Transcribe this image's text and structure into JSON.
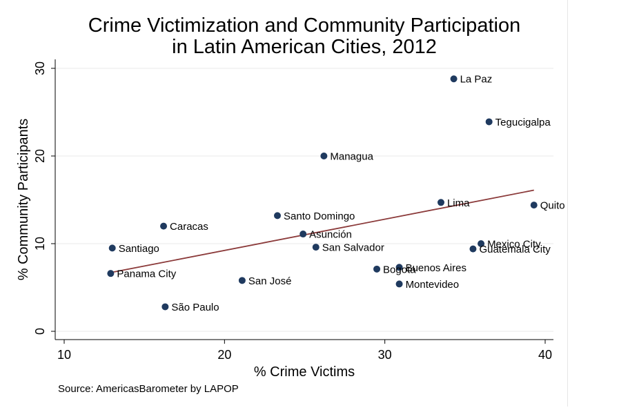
{
  "chart_data": {
    "type": "scatter",
    "title_lines": [
      "Crime Victimization and Community Participation",
      "in Latin American Cities, 2012"
    ],
    "xlabel": "% Crime Victims",
    "ylabel": "% Community Participants",
    "xlim": [
      10,
      40
    ],
    "ylim": [
      0,
      30
    ],
    "xticks": [
      10,
      20,
      30,
      40
    ],
    "yticks": [
      0,
      10,
      20,
      30
    ],
    "grid": "horizontal",
    "marker_color": "#1f3a5f",
    "fit_line_color": "#8b3a3a",
    "points": [
      {
        "label": "La Paz",
        "x": 34.3,
        "y": 28.8
      },
      {
        "label": "Tegucigalpa",
        "x": 36.5,
        "y": 23.9
      },
      {
        "label": "Managua",
        "x": 26.2,
        "y": 20.0
      },
      {
        "label": "Lima",
        "x": 33.5,
        "y": 14.7
      },
      {
        "label": "Quito",
        "x": 39.3,
        "y": 14.4
      },
      {
        "label": "Santo Domingo",
        "x": 23.3,
        "y": 13.2
      },
      {
        "label": "Caracas",
        "x": 16.2,
        "y": 12.0
      },
      {
        "label": "Asunción",
        "x": 24.9,
        "y": 11.1
      },
      {
        "label": "Mexico City",
        "x": 36.0,
        "y": 10.0
      },
      {
        "label": "Santiago",
        "x": 13.0,
        "y": 9.5
      },
      {
        "label": "San Salvador",
        "x": 25.7,
        "y": 9.6
      },
      {
        "label": "Guatemala City",
        "x": 35.5,
        "y": 9.4
      },
      {
        "label": "Buenos Aires",
        "x": 30.9,
        "y": 7.3
      },
      {
        "label": "Bogota",
        "x": 29.5,
        "y": 7.1
      },
      {
        "label": "Panama City",
        "x": 12.9,
        "y": 6.6
      },
      {
        "label": "San José",
        "x": 21.1,
        "y": 5.8
      },
      {
        "label": "Montevideo",
        "x": 30.9,
        "y": 5.4
      },
      {
        "label": "São Paulo",
        "x": 16.3,
        "y": 2.8
      }
    ],
    "fit_line": {
      "x": [
        12.9,
        39.3
      ],
      "y": [
        6.7,
        16.1
      ]
    }
  },
  "source": "Source: AmericasBarometer by LAPOP"
}
